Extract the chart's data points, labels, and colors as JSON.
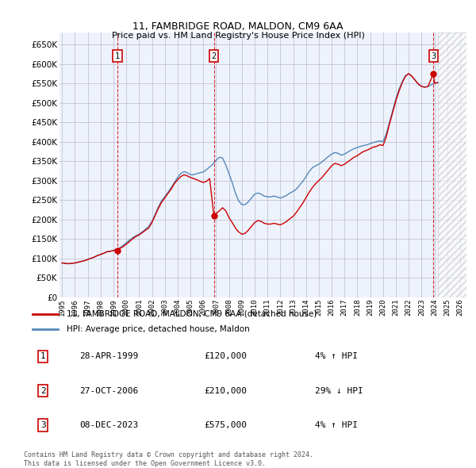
{
  "title1": "11, FAMBRIDGE ROAD, MALDON, CM9 6AA",
  "title2": "Price paid vs. HM Land Registry's House Price Index (HPI)",
  "ylim": [
    0,
    680000
  ],
  "yticks": [
    0,
    50000,
    100000,
    150000,
    200000,
    250000,
    300000,
    350000,
    400000,
    450000,
    500000,
    550000,
    600000,
    650000
  ],
  "xlim_start": 1994.8,
  "xlim_end": 2026.5,
  "sale_dates_num": [
    1999.32,
    2006.82,
    2023.93
  ],
  "sale_prices": [
    120000,
    210000,
    575000
  ],
  "sale_labels": [
    "1",
    "2",
    "3"
  ],
  "property_line_color": "#cc0000",
  "hpi_line_color": "#5588bb",
  "background_color": "#eef2fb",
  "grid_color": "#bbbbcc",
  "legend_label1": "11, FAMBRIDGE ROAD, MALDON, CM9 6AA (detached house)",
  "legend_label2": "HPI: Average price, detached house, Maldon",
  "table_rows": [
    [
      "1",
      "28-APR-1999",
      "£120,000",
      "4% ↑ HPI"
    ],
    [
      "2",
      "27-OCT-2006",
      "£210,000",
      "29% ↓ HPI"
    ],
    [
      "3",
      "08-DEC-2023",
      "£575,000",
      "4% ↑ HPI"
    ]
  ],
  "footer": "Contains HM Land Registry data © Crown copyright and database right 2024.\nThis data is licensed under the Open Government Licence v3.0.",
  "hpi_data_x": [
    1995.0,
    1995.25,
    1995.5,
    1995.75,
    1996.0,
    1996.25,
    1996.5,
    1996.75,
    1997.0,
    1997.25,
    1997.5,
    1997.75,
    1998.0,
    1998.25,
    1998.5,
    1998.75,
    1999.0,
    1999.25,
    1999.5,
    1999.75,
    2000.0,
    2000.25,
    2000.5,
    2000.75,
    2001.0,
    2001.25,
    2001.5,
    2001.75,
    2002.0,
    2002.25,
    2002.5,
    2002.75,
    2003.0,
    2003.25,
    2003.5,
    2003.75,
    2004.0,
    2004.25,
    2004.5,
    2004.75,
    2005.0,
    2005.25,
    2005.5,
    2005.75,
    2006.0,
    2006.25,
    2006.5,
    2006.75,
    2007.0,
    2007.25,
    2007.5,
    2007.75,
    2008.0,
    2008.25,
    2008.5,
    2008.75,
    2009.0,
    2009.25,
    2009.5,
    2009.75,
    2010.0,
    2010.25,
    2010.5,
    2010.75,
    2011.0,
    2011.25,
    2011.5,
    2011.75,
    2012.0,
    2012.25,
    2012.5,
    2012.75,
    2013.0,
    2013.25,
    2013.5,
    2013.75,
    2014.0,
    2014.25,
    2014.5,
    2014.75,
    2015.0,
    2015.25,
    2015.5,
    2015.75,
    2016.0,
    2016.25,
    2016.5,
    2016.75,
    2017.0,
    2017.25,
    2017.5,
    2017.75,
    2018.0,
    2018.25,
    2018.5,
    2018.75,
    2019.0,
    2019.25,
    2019.5,
    2019.75,
    2020.0,
    2020.25,
    2020.5,
    2020.75,
    2021.0,
    2021.25,
    2021.5,
    2021.75,
    2022.0,
    2022.25,
    2022.5,
    2022.75,
    2023.0,
    2023.25,
    2023.5,
    2023.75,
    2024.0,
    2024.25
  ],
  "hpi_data_y": [
    88000,
    87000,
    86000,
    87000,
    88000,
    90000,
    92000,
    94000,
    97000,
    100000,
    103000,
    107000,
    110000,
    113000,
    117000,
    118000,
    120000,
    122000,
    127000,
    133000,
    140000,
    147000,
    153000,
    158000,
    162000,
    168000,
    175000,
    182000,
    195000,
    213000,
    232000,
    248000,
    258000,
    270000,
    282000,
    295000,
    308000,
    318000,
    323000,
    320000,
    315000,
    315000,
    318000,
    320000,
    322000,
    328000,
    335000,
    342000,
    352000,
    360000,
    358000,
    340000,
    318000,
    295000,
    268000,
    248000,
    238000,
    238000,
    245000,
    255000,
    265000,
    268000,
    265000,
    260000,
    258000,
    258000,
    260000,
    258000,
    255000,
    258000,
    262000,
    268000,
    272000,
    278000,
    288000,
    298000,
    310000,
    323000,
    333000,
    338000,
    342000,
    348000,
    355000,
    362000,
    368000,
    372000,
    370000,
    365000,
    368000,
    373000,
    378000,
    382000,
    385000,
    388000,
    390000,
    392000,
    395000,
    398000,
    400000,
    402000,
    400000,
    420000,
    450000,
    480000,
    510000,
    535000,
    555000,
    570000,
    575000,
    568000,
    558000,
    548000,
    542000,
    540000,
    542000,
    546000,
    550000,
    552000
  ],
  "property_data_x": [
    1995.0,
    1995.25,
    1995.5,
    1995.75,
    1996.0,
    1996.25,
    1996.5,
    1996.75,
    1997.0,
    1997.25,
    1997.5,
    1997.75,
    1998.0,
    1998.25,
    1998.5,
    1998.75,
    1999.0,
    1999.25,
    1999.5,
    1999.75,
    2000.0,
    2000.25,
    2000.5,
    2000.75,
    2001.0,
    2001.25,
    2001.5,
    2001.75,
    2002.0,
    2002.25,
    2002.5,
    2002.75,
    2003.0,
    2003.25,
    2003.5,
    2003.75,
    2004.0,
    2004.25,
    2004.5,
    2004.75,
    2005.0,
    2005.25,
    2005.5,
    2005.75,
    2006.0,
    2006.25,
    2006.5,
    2006.82,
    2007.0,
    2007.25,
    2007.5,
    2007.75,
    2008.0,
    2008.25,
    2008.5,
    2008.75,
    2009.0,
    2009.25,
    2009.5,
    2009.75,
    2010.0,
    2010.25,
    2010.5,
    2010.75,
    2011.0,
    2011.25,
    2011.5,
    2011.75,
    2012.0,
    2012.25,
    2012.5,
    2012.75,
    2013.0,
    2013.25,
    2013.5,
    2013.75,
    2014.0,
    2014.25,
    2014.5,
    2014.75,
    2015.0,
    2015.25,
    2015.5,
    2015.75,
    2016.0,
    2016.25,
    2016.5,
    2016.75,
    2017.0,
    2017.25,
    2017.5,
    2017.75,
    2018.0,
    2018.25,
    2018.5,
    2018.75,
    2019.0,
    2019.25,
    2019.5,
    2019.75,
    2020.0,
    2020.25,
    2020.5,
    2020.75,
    2021.0,
    2021.25,
    2021.5,
    2021.75,
    2022.0,
    2022.25,
    2022.5,
    2022.75,
    2023.0,
    2023.25,
    2023.5,
    2023.93,
    2024.0,
    2024.25
  ],
  "property_data_y": [
    88000,
    87000,
    86000,
    87000,
    88000,
    90000,
    92000,
    94000,
    97000,
    100000,
    103000,
    107000,
    110000,
    113000,
    117000,
    118000,
    120000,
    122000,
    125000,
    130000,
    136000,
    143000,
    150000,
    156000,
    160000,
    166000,
    172000,
    178000,
    192000,
    210000,
    228000,
    244000,
    255000,
    267000,
    278000,
    292000,
    302000,
    310000,
    315000,
    312000,
    308000,
    305000,
    302000,
    298000,
    295000,
    298000,
    305000,
    210000,
    215000,
    222000,
    230000,
    222000,
    205000,
    192000,
    178000,
    168000,
    162000,
    164000,
    172000,
    182000,
    192000,
    197000,
    195000,
    190000,
    188000,
    188000,
    190000,
    188000,
    186000,
    190000,
    195000,
    202000,
    208000,
    218000,
    230000,
    242000,
    256000,
    270000,
    282000,
    292000,
    300000,
    308000,
    318000,
    328000,
    338000,
    344000,
    342000,
    338000,
    342000,
    348000,
    354000,
    360000,
    364000,
    370000,
    375000,
    378000,
    382000,
    386000,
    388000,
    392000,
    390000,
    412000,
    445000,
    475000,
    505000,
    530000,
    552000,
    568000,
    575000,
    568000,
    558000,
    548000,
    542000,
    540000,
    542000,
    575000,
    550000,
    552000
  ]
}
